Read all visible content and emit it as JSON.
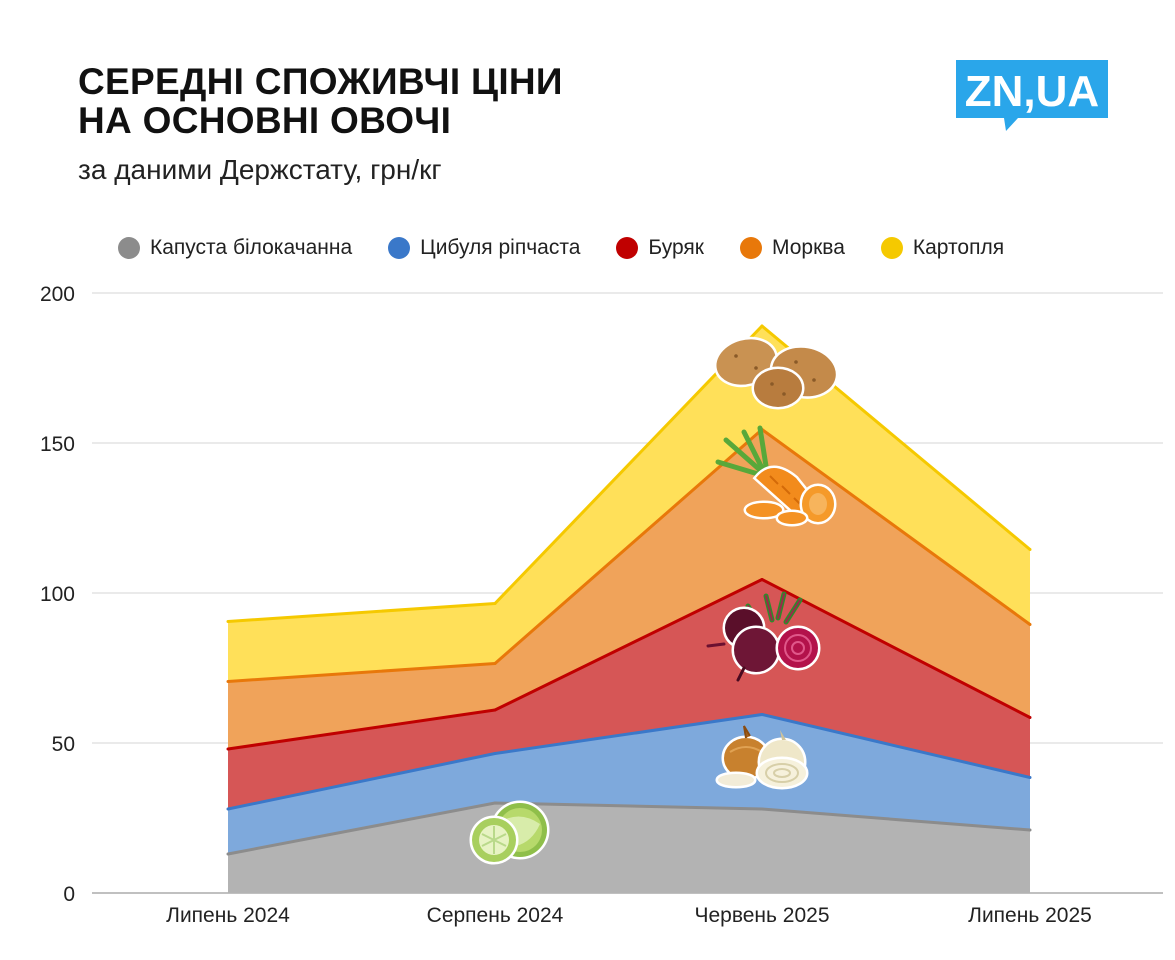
{
  "header": {
    "title_line1": "СЕРЕДНІ СПОЖИВЧІ ЦІНИ",
    "title_line2": "НА ОСНОВНІ ОВОЧІ",
    "subtitle": "за даними Держстату, грн/кг"
  },
  "logo": {
    "text": "ZN,UA",
    "color": "#2aa6ea"
  },
  "chart_data": {
    "type": "area",
    "stacked": true,
    "categories": [
      "Липень 2024",
      "Серпень 2024",
      "Червень 2025",
      "Липень 2025"
    ],
    "ylim": [
      0,
      200
    ],
    "yticks": [
      0,
      50,
      100,
      150,
      200
    ],
    "grid": true,
    "legend_position": "top",
    "series": [
      {
        "name": "Капуста білокачанна",
        "color": "#8c8c8c",
        "fill": "#b3b3b3",
        "values": [
          13,
          30,
          28,
          21
        ],
        "icon": "cabbage-icon"
      },
      {
        "name": "Цибуля ріпчаста",
        "color": "#3a78c9",
        "fill": "#7ea9dc",
        "values": [
          15,
          16.5,
          31.5,
          17.5
        ],
        "icon": "onion-icon"
      },
      {
        "name": "Буряк",
        "color": "#c00000",
        "fill": "#d65656",
        "values": [
          20,
          14.5,
          45,
          20
        ],
        "icon": "beet-icon"
      },
      {
        "name": "Морква",
        "color": "#e8780a",
        "fill": "#f0a35a",
        "values": [
          22.5,
          15.5,
          50,
          31
        ],
        "icon": "carrot-icon"
      },
      {
        "name": "Картопля",
        "color": "#f5c900",
        "fill": "#ffe059",
        "values": [
          20,
          20,
          34.5,
          25
        ],
        "icon": "potato-icon"
      }
    ]
  }
}
